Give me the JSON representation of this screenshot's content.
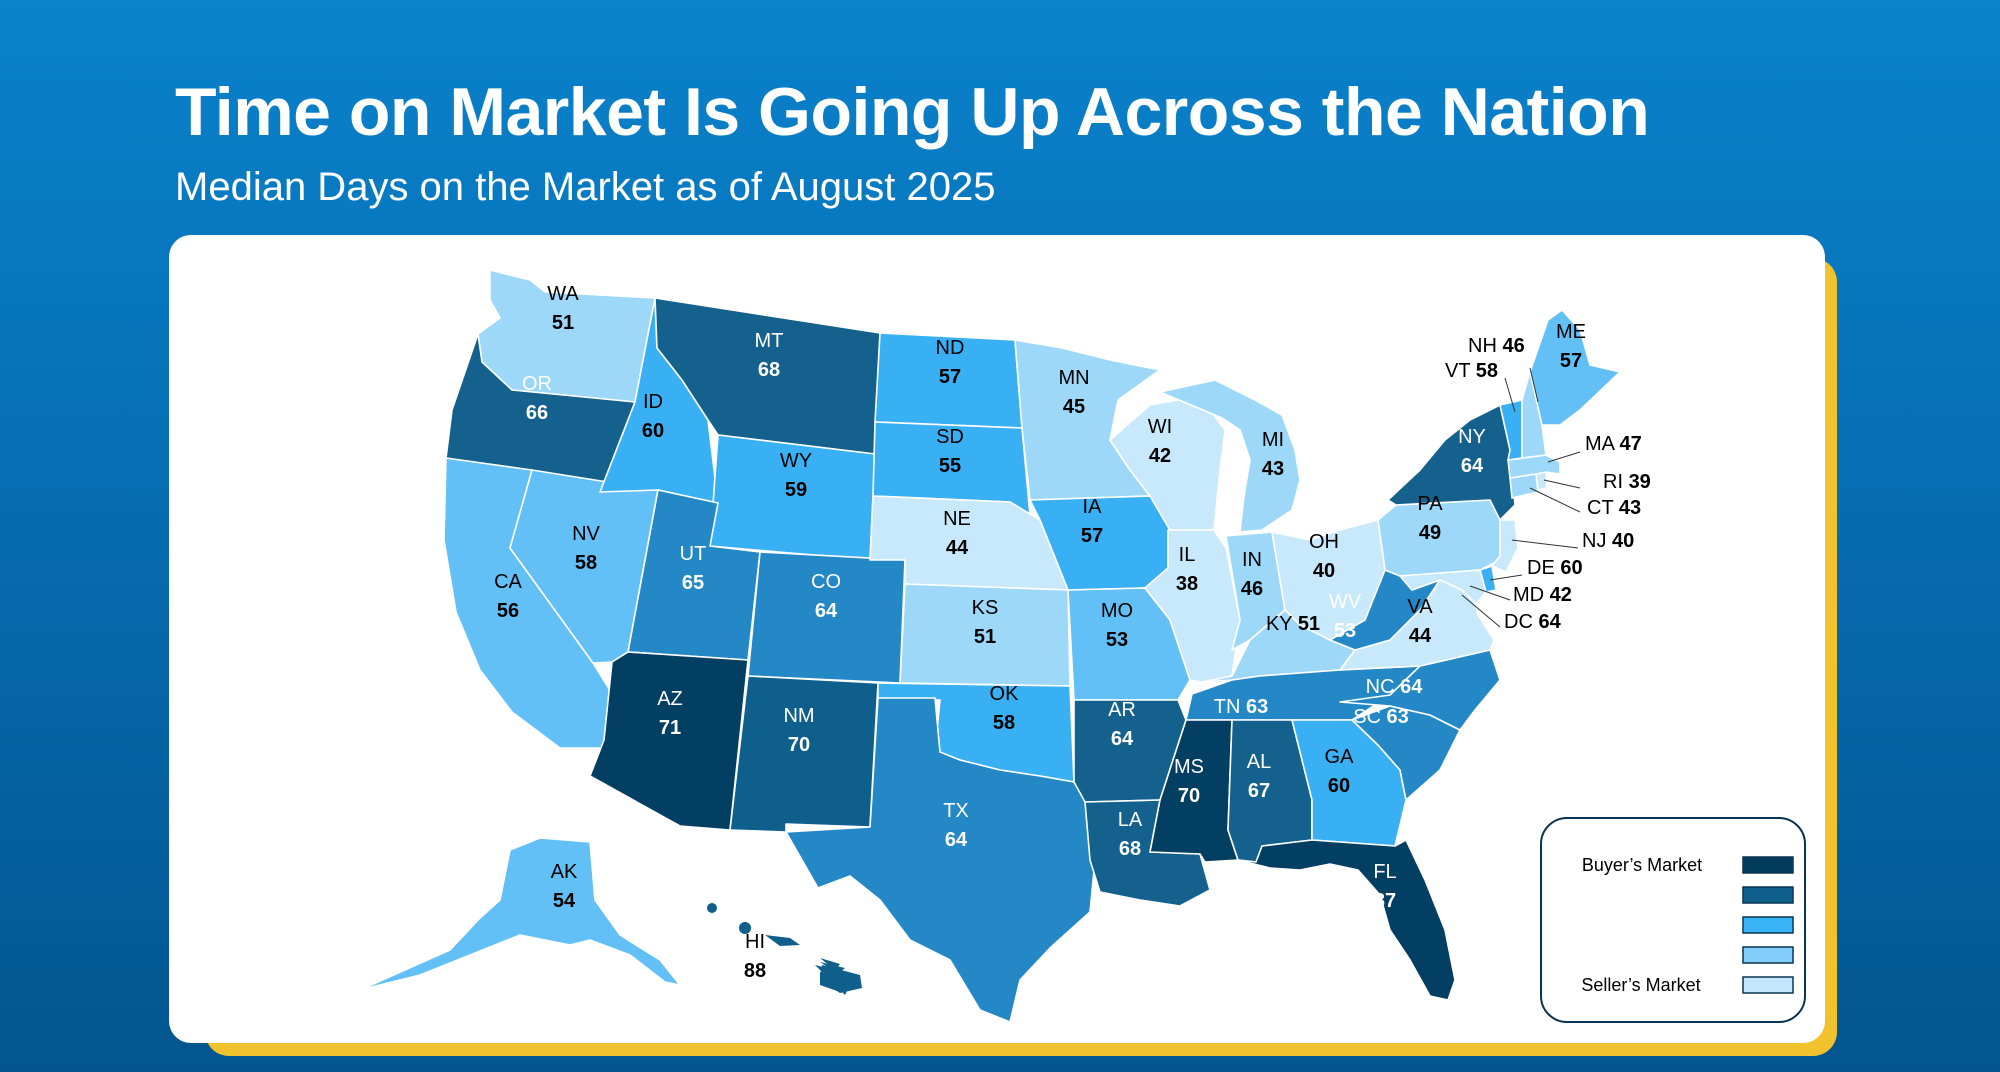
{
  "header": {
    "title": "Time on Market Is Going Up Across the Nation",
    "subtitle": "Median Days on the Market as of August 2025"
  },
  "legend": {
    "top_label": "Buyer’s Market",
    "bottom_label": "Seller’s Market",
    "swatches": [
      "#003a5c",
      "#0f5f8c",
      "#38b3f5",
      "#7fcdf8",
      "#c4e6fb"
    ]
  },
  "colors": {
    "darkest": "#033f63",
    "dark": "#14618e",
    "medium_dark": "#2488c6",
    "medium": "#3ab0f4",
    "light": "#62c0f7",
    "lighter": "#9dd8f9",
    "lightest": "#c8e8fb"
  },
  "states": [
    {
      "abbr": "WA",
      "value": "51"
    },
    {
      "abbr": "OR",
      "value": "66"
    },
    {
      "abbr": "CA",
      "value": "56"
    },
    {
      "abbr": "NV",
      "value": "58"
    },
    {
      "abbr": "ID",
      "value": "60"
    },
    {
      "abbr": "MT",
      "value": "68"
    },
    {
      "abbr": "WY",
      "value": "59"
    },
    {
      "abbr": "UT",
      "value": "65"
    },
    {
      "abbr": "AZ",
      "value": "71"
    },
    {
      "abbr": "CO",
      "value": "64"
    },
    {
      "abbr": "NM",
      "value": "70"
    },
    {
      "abbr": "ND",
      "value": "57"
    },
    {
      "abbr": "SD",
      "value": "55"
    },
    {
      "abbr": "NE",
      "value": "44"
    },
    {
      "abbr": "KS",
      "value": "51"
    },
    {
      "abbr": "OK",
      "value": "58"
    },
    {
      "abbr": "TX",
      "value": "64"
    },
    {
      "abbr": "MN",
      "value": "45"
    },
    {
      "abbr": "IA",
      "value": "57"
    },
    {
      "abbr": "MO",
      "value": "53"
    },
    {
      "abbr": "AR",
      "value": "64"
    },
    {
      "abbr": "LA",
      "value": "68"
    },
    {
      "abbr": "WI",
      "value": "42"
    },
    {
      "abbr": "IL",
      "value": "38"
    },
    {
      "abbr": "MI",
      "value": "43"
    },
    {
      "abbr": "IN",
      "value": "46"
    },
    {
      "abbr": "OH",
      "value": "40"
    },
    {
      "abbr": "KY",
      "value": "51"
    },
    {
      "abbr": "TN",
      "value": "63"
    },
    {
      "abbr": "MS",
      "value": "70"
    },
    {
      "abbr": "AL",
      "value": "67"
    },
    {
      "abbr": "GA",
      "value": "60"
    },
    {
      "abbr": "FL",
      "value": "87"
    },
    {
      "abbr": "SC",
      "value": "63"
    },
    {
      "abbr": "NC",
      "value": "64"
    },
    {
      "abbr": "VA",
      "value": "44"
    },
    {
      "abbr": "WV",
      "value": "53"
    },
    {
      "abbr": "PA",
      "value": "49"
    },
    {
      "abbr": "NY",
      "value": "64"
    },
    {
      "abbr": "ME",
      "value": "57"
    },
    {
      "abbr": "AK",
      "value": "54"
    },
    {
      "abbr": "HI",
      "value": "88"
    },
    {
      "abbr": "NH",
      "value": "46"
    },
    {
      "abbr": "VT",
      "value": "58"
    },
    {
      "abbr": "MA",
      "value": "47"
    },
    {
      "abbr": "RI",
      "value": "39"
    },
    {
      "abbr": "CT",
      "value": "43"
    },
    {
      "abbr": "NJ",
      "value": "40"
    },
    {
      "abbr": "DE",
      "value": "60"
    },
    {
      "abbr": "MD",
      "value": "42"
    },
    {
      "abbr": "DC",
      "value": "64"
    }
  ]
}
